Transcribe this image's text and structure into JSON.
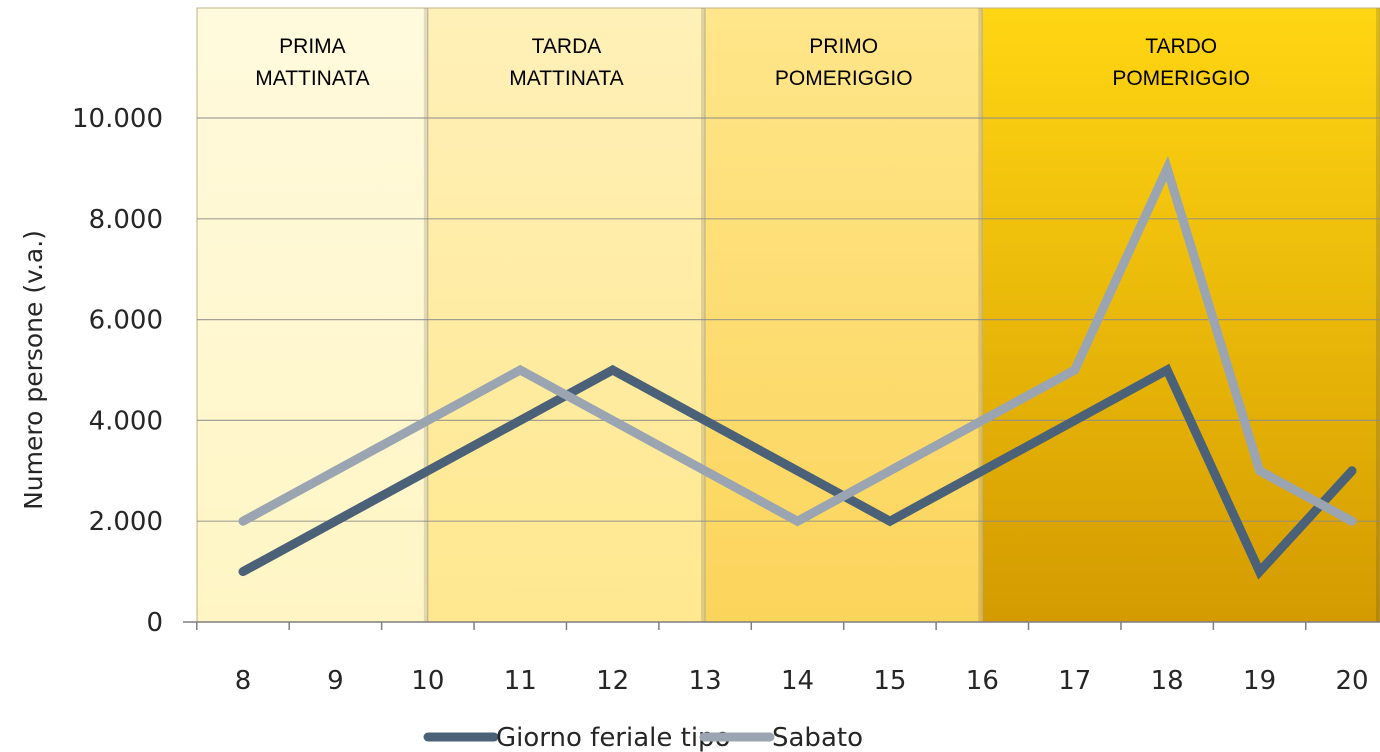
{
  "chart_data": {
    "type": "line",
    "x": [
      8,
      9,
      10,
      11,
      12,
      13,
      14,
      15,
      16,
      17,
      18,
      19,
      20
    ],
    "x_tick_labels": [
      "8",
      "9",
      "10",
      "11",
      "12",
      "13",
      "14",
      "15",
      "16",
      "17",
      "18",
      "19",
      "20"
    ],
    "ylabel": "Numero persone (v.a.)",
    "xlabel": "",
    "ylim": [
      0,
      10000
    ],
    "y_tick_labels": [
      "0",
      "2.000",
      "4.000",
      "6.000",
      "8.000",
      "10.000"
    ],
    "y_ticks": [
      0,
      2000,
      4000,
      6000,
      8000,
      10000
    ],
    "grid": true,
    "legend_position": "bottom",
    "series": [
      {
        "name": "Giorno feriale tipo",
        "color": "#4a6178",
        "values": [
          1000,
          2000,
          3000,
          4000,
          5000,
          4000,
          3000,
          2000,
          3000,
          4000,
          5000,
          1000,
          3000
        ]
      },
      {
        "name": "Sabato",
        "color": "#9ba5b1",
        "values": [
          2000,
          3000,
          4000,
          5000,
          4000,
          3000,
          2000,
          3000,
          4000,
          5000,
          9000,
          3000,
          2000
        ]
      }
    ],
    "bands": [
      {
        "label_lines": [
          "PRIMA",
          "MATTINATA"
        ],
        "from": 7.5,
        "to": 10,
        "colors": [
          "#fffadd",
          "#fff5c4"
        ]
      },
      {
        "label_lines": [
          "TARDA",
          "MATTINATA"
        ],
        "from": 10,
        "to": 13,
        "colors": [
          "#fff0b8",
          "#ffe88f"
        ]
      },
      {
        "label_lines": [
          "PRIMO",
          "POMERIGGIO"
        ],
        "from": 13,
        "to": 16,
        "colors": [
          "#ffe68a",
          "#fbd45b"
        ]
      },
      {
        "label_lines": [
          "TARDO",
          "POMERIGGIO"
        ],
        "from": 16,
        "to": 20.3,
        "colors": [
          "#ffd613",
          "#d49b00"
        ]
      }
    ]
  }
}
